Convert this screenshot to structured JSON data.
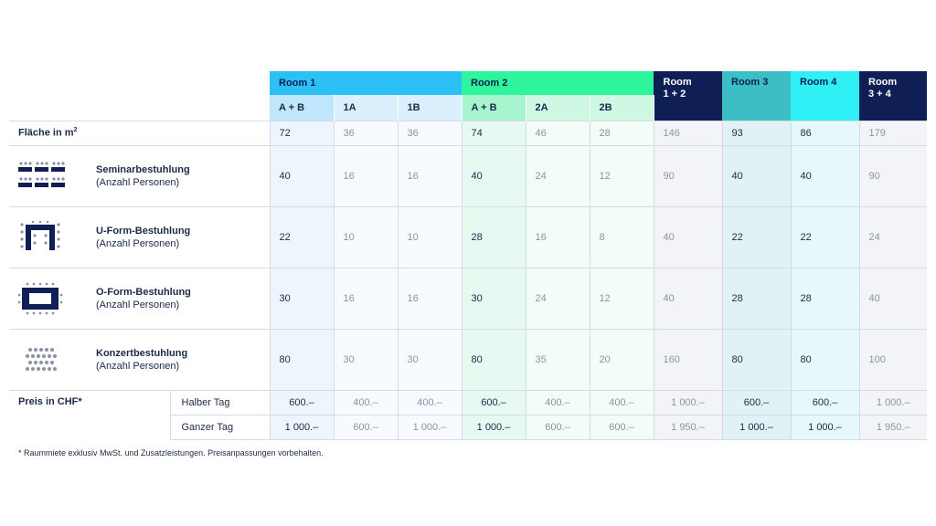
{
  "header": {
    "groups": [
      {
        "label": "Room 1"
      },
      {
        "label": "Room 2"
      },
      {
        "label": "Room\n1 + 2"
      },
      {
        "label": "Room 3"
      },
      {
        "label": "Room 4"
      },
      {
        "label": "Room\n3 + 4"
      }
    ],
    "sub": [
      "A + B",
      "1A",
      "1B",
      "A + B",
      "2A",
      "2B"
    ],
    "colors": {
      "room1": "#2cc1f5",
      "room1_sub": "#bfe6fb",
      "room1_sub_light": "#daf0fc",
      "room2": "#2ef59b",
      "room2_sub": "#a6f5cf",
      "room2_sub_light": "#cff8e4",
      "room12": "#0f1f56",
      "room3": "#3bbfc4",
      "room4": "#2ef0f5",
      "room34": "#0f1f56",
      "text_dark": "#1b2a4a",
      "text_dim": "#8a93a6"
    }
  },
  "area": {
    "label": "Fläche in m",
    "sup": "2",
    "values": [
      "72",
      "36",
      "36",
      "74",
      "46",
      "28",
      "146",
      "93",
      "86",
      "179"
    ]
  },
  "setups": [
    {
      "icon": "seminar-seating-icon",
      "title": "Seminarbestuhlung",
      "sub": "(Anzahl Personen)",
      "values": [
        "40",
        "16",
        "16",
        "40",
        "24",
        "12",
        "90",
        "40",
        "40",
        "90"
      ]
    },
    {
      "icon": "u-shape-seating-icon",
      "title": "U-Form-Bestuhlung",
      "sub": "(Anzahl Personen)",
      "values": [
        "22",
        "10",
        "10",
        "28",
        "16",
        "8",
        "40",
        "22",
        "22",
        "24"
      ]
    },
    {
      "icon": "o-shape-seating-icon",
      "title": "O-Form-Bestuhlung",
      "sub": "(Anzahl Personen)",
      "values": [
        "30",
        "16",
        "16",
        "30",
        "24",
        "12",
        "40",
        "28",
        "28",
        "40"
      ]
    },
    {
      "icon": "concert-seating-icon",
      "title": "Konzertbestuhlung",
      "sub": "(Anzahl Personen)",
      "values": [
        "80",
        "30",
        "30",
        "80",
        "35",
        "20",
        "160",
        "80",
        "80",
        "100"
      ]
    }
  ],
  "prices": {
    "label": "Preis in CHF*",
    "rows": [
      {
        "kind": "Halber Tag",
        "values": [
          "600.–",
          "400.–",
          "400.–",
          "600.–",
          "400.–",
          "400.–",
          "1 000.–",
          "600.–",
          "600.–",
          "1 000.–"
        ]
      },
      {
        "kind": "Ganzer Tag",
        "values": [
          "1 000.–",
          "600.–",
          "1 000.–",
          "1 000.–",
          "600.–",
          "600.–",
          "1 950.–",
          "1 000.–",
          "1 000.–",
          "1 950.–"
        ]
      }
    ]
  },
  "footnote": "* Raummiete exklusiv MwSt. und Zusatzleistungen. Preisanpassungen vorbehalten."
}
